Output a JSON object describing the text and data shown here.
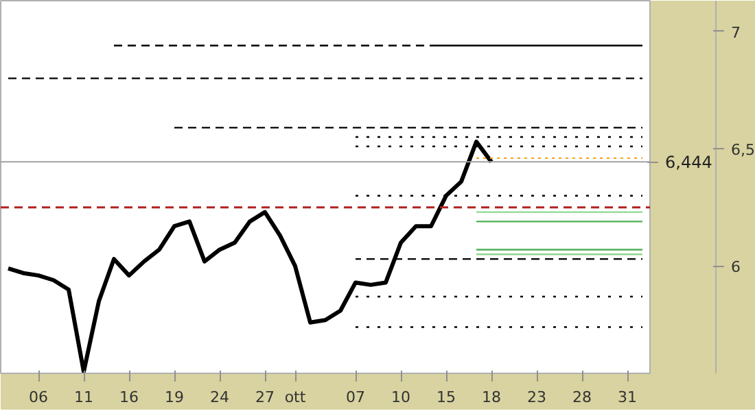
{
  "chart_data": {
    "type": "line",
    "ylim": [
      5.543,
      7.131
    ],
    "categories": [
      null,
      null,
      "06",
      null,
      null,
      "11",
      null,
      null,
      "16",
      null,
      null,
      "19",
      null,
      null,
      "24",
      null,
      null,
      "27",
      null,
      "ott",
      null,
      null,
      null,
      "07",
      null,
      null,
      "10",
      null,
      null,
      "15",
      null,
      null,
      "18",
      null,
      null,
      "23",
      null,
      null,
      "28",
      null,
      null,
      "31",
      null
    ],
    "yticks": [
      6,
      {
        "value": 6.5,
        "label": "6,5"
      },
      7
    ],
    "grid": false,
    "series": [
      {
        "color": "#000000",
        "line_style": "solid",
        "values": [
          5.99,
          5.97,
          5.96,
          5.94,
          5.9,
          5.55,
          5.85,
          6.03,
          5.96,
          6.02,
          6.07,
          6.17,
          6.19,
          6.02,
          6.07,
          6.1,
          6.19,
          6.23,
          6.13,
          6.0,
          5.76,
          5.77,
          5.81,
          5.93,
          5.92,
          5.93,
          6.1,
          6.17,
          6.17,
          6.3,
          6.36,
          6.53,
          6.444,
          null,
          null,
          null,
          null,
          null,
          null,
          null,
          null,
          null,
          null
        ]
      },
      {
        "color": "#000000",
        "line_style": "dashed",
        "values": [
          null,
          null,
          null,
          null,
          null,
          null,
          null,
          6.94,
          6.94,
          6.94,
          6.94,
          6.94,
          6.94,
          6.94,
          6.94,
          6.94,
          6.94,
          6.94,
          6.94,
          6.94,
          6.94,
          6.94,
          6.94,
          6.94,
          6.94,
          6.94,
          6.94,
          6.94,
          6.94,
          null,
          null,
          null,
          null,
          null,
          null,
          null,
          null,
          null,
          null,
          null,
          null,
          null,
          null
        ]
      },
      {
        "color": "#000000",
        "line_style": "solid",
        "values": [
          null,
          null,
          null,
          null,
          null,
          null,
          null,
          null,
          null,
          null,
          null,
          null,
          null,
          null,
          null,
          null,
          null,
          null,
          null,
          null,
          null,
          null,
          null,
          null,
          null,
          null,
          null,
          null,
          6.94,
          6.94,
          6.94,
          6.94,
          6.94,
          6.94,
          6.94,
          6.94,
          6.94,
          6.94,
          6.94,
          6.94,
          6.94,
          6.94,
          6.94
        ]
      },
      {
        "color": "#000000",
        "line_style": "dashed",
        "values": [
          6.8,
          6.8,
          6.8,
          6.8,
          6.8,
          6.8,
          6.8,
          6.8,
          6.8,
          6.8,
          6.8,
          6.8,
          6.8,
          6.8,
          6.8,
          6.8,
          6.8,
          6.8,
          6.8,
          6.8,
          6.8,
          6.8,
          6.8,
          6.8,
          6.8,
          6.8,
          6.8,
          6.8,
          6.8,
          6.8,
          6.8,
          6.8,
          6.8,
          6.8,
          6.8,
          6.8,
          6.8,
          6.8,
          6.8,
          6.8,
          6.8,
          6.8,
          6.8
        ]
      },
      {
        "color": "#000000",
        "line_style": "dashed",
        "values": [
          null,
          null,
          null,
          null,
          null,
          null,
          null,
          null,
          null,
          null,
          null,
          6.59,
          6.59,
          6.59,
          6.59,
          6.59,
          6.59,
          6.59,
          6.59,
          6.59,
          6.59,
          6.59,
          6.59,
          6.59,
          6.59,
          6.59,
          6.59,
          6.59,
          6.59,
          6.59,
          6.59,
          6.59,
          6.59,
          6.59,
          6.59,
          6.59,
          6.59,
          6.59,
          6.59,
          6.59,
          6.59,
          6.59,
          6.59
        ]
      },
      {
        "color": "#000000",
        "line_style": "dotted",
        "values": [
          null,
          null,
          null,
          null,
          null,
          null,
          null,
          null,
          null,
          null,
          null,
          null,
          null,
          null,
          null,
          null,
          null,
          null,
          null,
          null,
          null,
          null,
          null,
          6.55,
          6.55,
          6.55,
          6.55,
          6.55,
          6.55,
          6.55,
          6.55,
          6.55,
          6.55,
          6.55,
          6.55,
          6.55,
          6.55,
          6.55,
          6.55,
          6.55,
          6.55,
          6.55,
          6.55
        ]
      },
      {
        "color": "#000000",
        "line_style": "dotted",
        "values": [
          null,
          null,
          null,
          null,
          null,
          null,
          null,
          null,
          null,
          null,
          null,
          null,
          null,
          null,
          null,
          null,
          null,
          null,
          null,
          null,
          null,
          null,
          null,
          6.51,
          6.51,
          6.51,
          6.51,
          6.51,
          6.51,
          6.51,
          6.51,
          6.51,
          6.51,
          6.51,
          6.51,
          6.51,
          6.51,
          6.51,
          6.51,
          6.51,
          6.51,
          6.51,
          6.51
        ]
      },
      {
        "color": "#f5a623",
        "line_style": "dotted",
        "values": [
          null,
          null,
          null,
          null,
          null,
          null,
          null,
          null,
          null,
          null,
          null,
          null,
          null,
          null,
          null,
          null,
          null,
          null,
          null,
          null,
          null,
          null,
          null,
          null,
          null,
          null,
          null,
          null,
          null,
          null,
          null,
          6.46,
          6.46,
          6.46,
          6.46,
          6.46,
          6.46,
          6.46,
          6.46,
          6.46,
          6.46,
          6.46,
          6.46
        ]
      },
      {
        "color": "#000000",
        "line_style": "dotted",
        "values": [
          null,
          null,
          null,
          null,
          null,
          null,
          null,
          null,
          null,
          null,
          null,
          null,
          null,
          null,
          null,
          null,
          null,
          null,
          null,
          null,
          null,
          null,
          null,
          6.3,
          6.3,
          6.3,
          6.3,
          6.3,
          6.3,
          6.3,
          6.3,
          6.3,
          6.3,
          6.3,
          6.3,
          6.3,
          6.3,
          6.3,
          6.3,
          6.3,
          6.3,
          6.3,
          6.3
        ]
      },
      {
        "color": "#90d890",
        "line_style": "solid",
        "values": [
          null,
          null,
          null,
          null,
          null,
          null,
          null,
          null,
          null,
          null,
          null,
          null,
          null,
          null,
          null,
          null,
          null,
          null,
          null,
          null,
          null,
          null,
          null,
          null,
          null,
          null,
          null,
          null,
          null,
          null,
          null,
          6.23,
          6.23,
          6.23,
          6.23,
          6.23,
          6.23,
          6.23,
          6.23,
          6.23,
          6.23,
          6.23,
          6.23
        ]
      },
      {
        "color": "#4caf50",
        "line_style": "solid",
        "values": [
          null,
          null,
          null,
          null,
          null,
          null,
          null,
          null,
          null,
          null,
          null,
          null,
          null,
          null,
          null,
          null,
          null,
          null,
          null,
          null,
          null,
          null,
          null,
          null,
          null,
          null,
          null,
          null,
          null,
          null,
          null,
          6.19,
          6.19,
          6.19,
          6.19,
          6.19,
          6.19,
          6.19,
          6.19,
          6.19,
          6.19,
          6.19,
          6.19
        ]
      },
      {
        "color": "#4caf50",
        "line_style": "solid",
        "values": [
          null,
          null,
          null,
          null,
          null,
          null,
          null,
          null,
          null,
          null,
          null,
          null,
          null,
          null,
          null,
          null,
          null,
          null,
          null,
          null,
          null,
          null,
          null,
          null,
          null,
          null,
          null,
          null,
          null,
          null,
          null,
          6.07,
          6.07,
          6.07,
          6.07,
          6.07,
          6.07,
          6.07,
          6.07,
          6.07,
          6.07,
          6.07,
          6.07
        ]
      },
      {
        "color": "#90d890",
        "line_style": "solid",
        "values": [
          null,
          null,
          null,
          null,
          null,
          null,
          null,
          null,
          null,
          null,
          null,
          null,
          null,
          null,
          null,
          null,
          null,
          null,
          null,
          null,
          null,
          null,
          null,
          null,
          null,
          null,
          null,
          null,
          null,
          null,
          null,
          6.05,
          6.05,
          6.05,
          6.05,
          6.05,
          6.05,
          6.05,
          6.05,
          6.05,
          6.05,
          6.05,
          6.05
        ]
      },
      {
        "color": "#000000",
        "line_style": "dashed",
        "values": [
          null,
          null,
          null,
          null,
          null,
          null,
          null,
          null,
          null,
          null,
          null,
          null,
          null,
          null,
          null,
          null,
          null,
          null,
          null,
          null,
          null,
          null,
          null,
          6.03,
          6.03,
          6.03,
          6.03,
          6.03,
          6.03,
          6.03,
          6.03,
          6.03,
          6.03,
          6.03,
          6.03,
          6.03,
          6.03,
          6.03,
          6.03,
          6.03,
          6.03,
          6.03,
          6.03
        ]
      },
      {
        "color": "#000000",
        "line_style": "dotted",
        "values": [
          null,
          null,
          null,
          null,
          null,
          null,
          null,
          null,
          null,
          null,
          null,
          null,
          null,
          null,
          null,
          null,
          null,
          null,
          null,
          null,
          null,
          null,
          null,
          5.87,
          5.87,
          5.87,
          5.87,
          5.87,
          5.87,
          5.87,
          5.87,
          5.87,
          5.87,
          5.87,
          5.87,
          5.87,
          5.87,
          5.87,
          5.87,
          5.87,
          5.87,
          5.87,
          5.87
        ]
      },
      {
        "color": "#000000",
        "line_style": "dotted",
        "values": [
          null,
          null,
          null,
          null,
          null,
          null,
          null,
          null,
          null,
          null,
          null,
          null,
          null,
          null,
          null,
          null,
          null,
          null,
          null,
          null,
          null,
          null,
          null,
          5.74,
          5.74,
          5.74,
          5.74,
          5.74,
          5.74,
          5.74,
          5.74,
          5.74,
          5.74,
          5.74,
          5.74,
          5.74,
          5.74,
          5.74,
          5.74,
          5.74,
          5.74,
          5.74,
          5.74
        ]
      }
    ],
    "ref_lines": [
      {
        "axis": "y",
        "value": 6.444,
        "label": "6,444",
        "color": "#a0a0a0",
        "line_style": "solid"
      },
      {
        "axis": "y",
        "value": 6.25,
        "label": null,
        "color": "#b22222",
        "line_style": "dashed"
      }
    ]
  }
}
